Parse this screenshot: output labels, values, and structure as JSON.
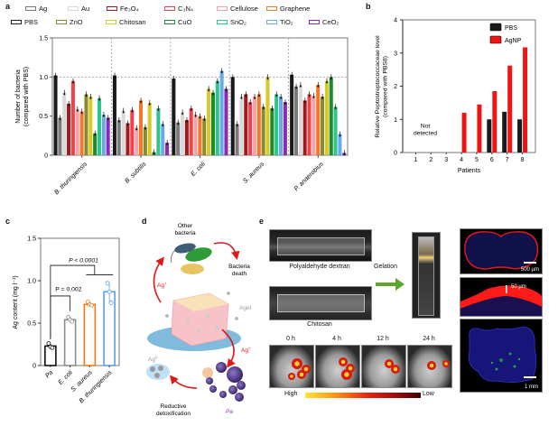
{
  "panels": {
    "a": "a",
    "b": "b",
    "c": "c",
    "d": "d",
    "e": "e"
  },
  "chart_data": [
    {
      "id": "a",
      "type": "bar",
      "title": "",
      "xlabel": "",
      "ylabel": "Number of bacteria (compared with PBS)",
      "ylabel_lines": [
        "Number of bacteria",
        "(compared with PBS)"
      ],
      "ylim": [
        0,
        1.5
      ],
      "yticks": [
        0,
        0.5,
        1.0,
        1.5
      ],
      "ytick_labels": [
        "0",
        "0.5",
        "1.0",
        "1.5"
      ],
      "reference_line": 1.0,
      "categories": [
        "B. thuringiensis",
        "B. subtilis",
        "E. coli",
        "S. aureus",
        "P. anaerobius"
      ],
      "legend_position": "top",
      "series": [
        {
          "name": "PBS",
          "color": "#1a1a1a",
          "values": [
            1.02,
            1.02,
            0.98,
            1.0,
            1.03
          ]
        },
        {
          "name": "Ag",
          "color": "#7a7a7a",
          "values": [
            0.48,
            0.45,
            0.42,
            0.4,
            0.88
          ]
        },
        {
          "name": "Au",
          "color": "#d9d9d9",
          "values": [
            0.8,
            0.57,
            0.55,
            0.75,
            0.9
          ]
        },
        {
          "name": "Fe3O4",
          "color": "#a01c1c",
          "values": [
            0.66,
            0.41,
            0.45,
            0.78,
            0.7
          ]
        },
        {
          "name": "C3N4",
          "color": "#f0424a",
          "values": [
            0.95,
            0.58,
            0.6,
            0.68,
            0.78
          ]
        },
        {
          "name": "Cellulose",
          "color": "#f5a3a8",
          "values": [
            0.59,
            0.35,
            0.52,
            0.75,
            0.76
          ]
        },
        {
          "name": "Graphene",
          "color": "#f4772b",
          "values": [
            0.56,
            0.7,
            0.5,
            0.78,
            0.9
          ]
        },
        {
          "name": "ZnO",
          "color": "#8c8a2a",
          "values": [
            0.78,
            0.36,
            0.47,
            0.62,
            0.75
          ]
        },
        {
          "name": "Chitosan",
          "color": "#d6c92a",
          "values": [
            0.75,
            0.67,
            0.85,
            1.0,
            0.95
          ]
        },
        {
          "name": "CuO",
          "color": "#1f8a2d",
          "values": [
            0.28,
            0.04,
            0.8,
            0.6,
            1.0
          ]
        },
        {
          "name": "SnO2",
          "color": "#2ec48a",
          "values": [
            0.73,
            0.6,
            0.95,
            0.78,
            0.62
          ]
        },
        {
          "name": "TiO2",
          "color": "#6aa9ea",
          "values": [
            0.52,
            0.4,
            1.08,
            0.75,
            0.27
          ]
        },
        {
          "name": "CeO2",
          "color": "#8a2bb0",
          "values": [
            0.48,
            0.16,
            0.85,
            0.68,
            0.03
          ]
        }
      ],
      "legend_rows": [
        [
          "Ag",
          "Au",
          "Fe3O4",
          "C3N4",
          "Cellulose",
          "Graphene"
        ],
        [
          "PBS",
          "ZnO",
          "Chitosan",
          "CuO",
          "SnO2",
          "TiO2",
          "CeO2"
        ]
      ]
    },
    {
      "id": "b",
      "type": "bar",
      "title": "",
      "xlabel": "Patients",
      "ylabel": "Relative Peptostreptococcaceae level (compared with PBS8)",
      "ylabel_lines": [
        "Relative Peptostreptococcaceae level",
        "(compared with PBS8)"
      ],
      "ylim": [
        0,
        4
      ],
      "yticks": [
        0,
        1,
        2,
        3,
        4
      ],
      "ytick_labels": [
        "0",
        "1",
        "2",
        "3",
        "4"
      ],
      "categories": [
        "1",
        "2",
        "3",
        "4",
        "5",
        "6",
        "7",
        "8"
      ],
      "legend_position": "top-right",
      "annotation": [
        "Not",
        "detected"
      ],
      "series": [
        {
          "name": "PBS",
          "color": "#1a1a1a",
          "values": [
            null,
            null,
            null,
            null,
            null,
            1.0,
            1.23,
            1.0
          ]
        },
        {
          "name": "AgNP",
          "color": "#f01414",
          "values": [
            null,
            null,
            null,
            1.2,
            1.45,
            1.85,
            2.62,
            3.17
          ]
        }
      ]
    },
    {
      "id": "c",
      "type": "bar",
      "title": "",
      "xlabel": "",
      "ylabel": "Ag content (mg l⁻¹)",
      "ylim": [
        0,
        1.5
      ],
      "yticks": [
        0,
        0.5,
        1.0,
        1.5
      ],
      "ytick_labels": [
        "0",
        "0.5",
        "1.0",
        "1.5"
      ],
      "categories": [
        "Pa",
        "E. coli",
        "S. aureus",
        "B. thuringiensis"
      ],
      "colors": [
        "#111111",
        "#8c8c8c",
        "#f07a18",
        "#5aa0e8"
      ],
      "values": [
        0.23,
        0.54,
        0.72,
        0.87
      ],
      "points": [
        [
          0.26,
          0.22,
          0.21
        ],
        [
          0.57,
          0.54,
          0.52
        ],
        [
          0.75,
          0.72,
          0.71
        ],
        [
          0.97,
          0.87,
          0.74
        ]
      ],
      "annotations": [
        "P < 0.0001",
        "P = 0.002"
      ]
    }
  ],
  "diagram_d": {
    "other_bacteria": [
      "Other",
      "bacteria"
    ],
    "bacteria_death": [
      "Bacteria",
      "death"
    ],
    "ag_plus_left": "Ag",
    "ag_plus_right": "Ag",
    "ag_sup": "+",
    "agel": "Agel",
    "ag0": "Ag",
    "ag0_sup": "0",
    "reductive": [
      "Reductive",
      "detoxification"
    ],
    "pa": "Pa"
  },
  "panel_e": {
    "polyaldehyde": "Polyaldehyde dextran",
    "chitosan": "Chitosan",
    "gelation": "Gelation",
    "timepoints": [
      "0 h",
      "4 h",
      "12 h",
      "24 h"
    ],
    "scale_high": "High",
    "scale_low": "Low",
    "scalebar_500": "500 µm",
    "scalebar_50": "50 µm",
    "scalebar_1mm": "1 mm",
    "arrow_color": "#5aa52a"
  }
}
